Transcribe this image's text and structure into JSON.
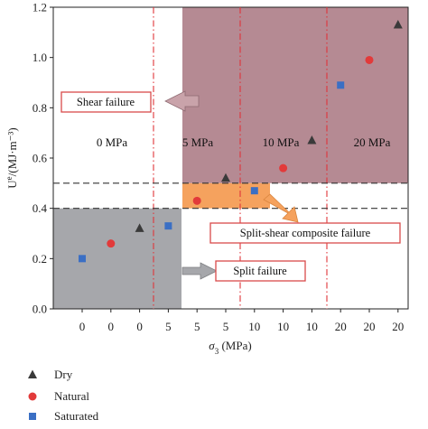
{
  "chart_data": {
    "type": "scatter",
    "xlabel": "σ3 (MPa)",
    "ylabel": "Ue/(MJ·m⁻³)",
    "ylim": [
      0,
      1.2
    ],
    "yticks": [
      "0.0",
      "0.2",
      "0.4",
      "0.6",
      "0.8",
      "1.0",
      "1.2"
    ],
    "categories": [
      "0",
      "0",
      "0",
      "5",
      "5",
      "5",
      "10",
      "10",
      "10",
      "20",
      "20",
      "20"
    ],
    "series": [
      {
        "name": "Dry",
        "marker": "triangle",
        "color": "#3a3a3a",
        "x": [
          3,
          6,
          9,
          12
        ],
        "values": [
          0.32,
          0.52,
          0.67,
          1.13
        ]
      },
      {
        "name": "Natural",
        "marker": "circle",
        "color": "#e23a3a",
        "x": [
          2,
          5,
          8,
          11
        ],
        "values": [
          0.26,
          0.43,
          0.56,
          0.99
        ]
      },
      {
        "name": "Saturated",
        "marker": "square",
        "color": "#3b6fc4",
        "x": [
          1,
          4,
          7,
          10
        ],
        "values": [
          0.2,
          0.33,
          0.47,
          0.89
        ]
      }
    ],
    "thresholds": [
      0.4,
      0.5
    ],
    "pressure_labels": [
      "0 MPa",
      "5 MPa",
      "10 MPa",
      "20 MPa"
    ],
    "regions": [
      {
        "name": "Shear failure",
        "color": "#b58a93"
      },
      {
        "name": "Split-shear composite failure",
        "color": "#f5a25e"
      },
      {
        "name": "Split failure",
        "color": "#a6a7ab"
      }
    ],
    "legend_position": "bottom-left",
    "grid": false
  }
}
